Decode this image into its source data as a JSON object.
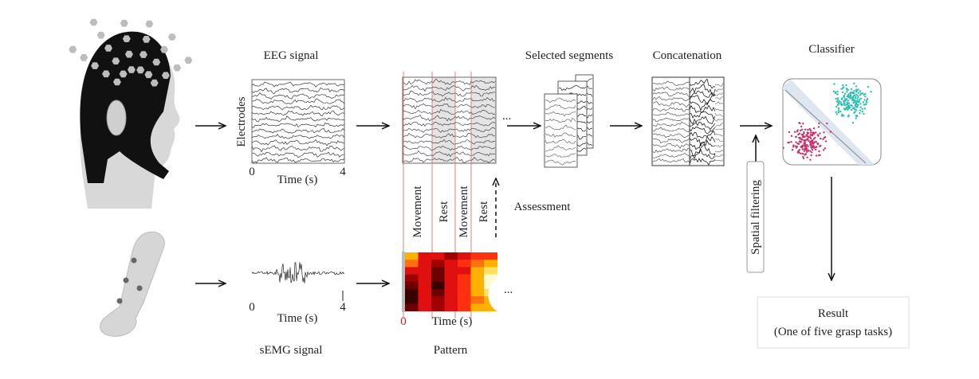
{
  "eeg": {
    "title": "EEG signal",
    "ylabel": "Electrodes",
    "xlabel": "Time (s)",
    "x_start": "0",
    "x_end": "4"
  },
  "semg": {
    "title": "sEMG signal",
    "xlabel": "Time (s)",
    "x_start": "0",
    "x_end": "4"
  },
  "segmentation": {
    "labels": [
      "Movement",
      "Rest",
      "Movement",
      "Rest"
    ],
    "assessment": "Assessment",
    "ellipsis": "..."
  },
  "pattern": {
    "title": "Pattern",
    "x_start": "0",
    "xlabel": "Time (s)",
    "ellipsis": "..."
  },
  "selected_segments": {
    "title": "Selected segments"
  },
  "concatenation": {
    "title": "Concatenation"
  },
  "spatial_filtering": {
    "label": "Spatial filtering"
  },
  "classifier": {
    "title": "Classifier",
    "class_colors": [
      "#2bbfae",
      "#c8326a"
    ]
  },
  "result": {
    "line1": "Result",
    "line2": "(One of five grasp tasks)"
  },
  "colors": {
    "marker_line": "#e06060",
    "cap": "#111111",
    "electrode": "#bdbdbd"
  }
}
